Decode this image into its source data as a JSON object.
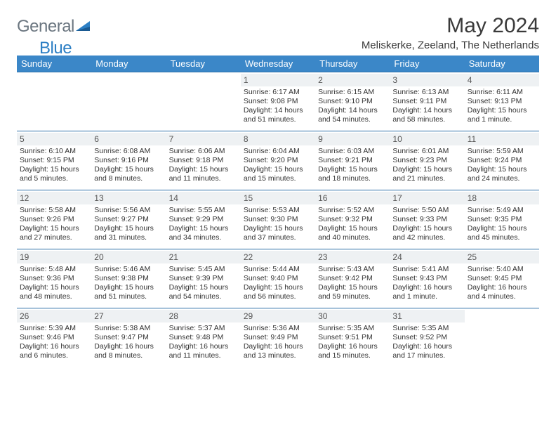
{
  "logo": {
    "text1": "General",
    "text2": "Blue"
  },
  "title": "May 2024",
  "location": "Meliskerke, Zeeland, The Netherlands",
  "colors": {
    "header_bg": "#3b87c8",
    "header_text": "#ffffff",
    "daynum_bg": "#eef1f3",
    "row_border": "#2d6fa8",
    "logo_gray": "#6b7680",
    "logo_blue": "#2d7fc4"
  },
  "day_headers": [
    "Sunday",
    "Monday",
    "Tuesday",
    "Wednesday",
    "Thursday",
    "Friday",
    "Saturday"
  ],
  "weeks": [
    [
      {
        "n": "",
        "sr": "",
        "ss": "",
        "dl": ""
      },
      {
        "n": "",
        "sr": "",
        "ss": "",
        "dl": ""
      },
      {
        "n": "",
        "sr": "",
        "ss": "",
        "dl": ""
      },
      {
        "n": "1",
        "sr": "Sunrise: 6:17 AM",
        "ss": "Sunset: 9:08 PM",
        "dl": "Daylight: 14 hours and 51 minutes."
      },
      {
        "n": "2",
        "sr": "Sunrise: 6:15 AM",
        "ss": "Sunset: 9:10 PM",
        "dl": "Daylight: 14 hours and 54 minutes."
      },
      {
        "n": "3",
        "sr": "Sunrise: 6:13 AM",
        "ss": "Sunset: 9:11 PM",
        "dl": "Daylight: 14 hours and 58 minutes."
      },
      {
        "n": "4",
        "sr": "Sunrise: 6:11 AM",
        "ss": "Sunset: 9:13 PM",
        "dl": "Daylight: 15 hours and 1 minute."
      }
    ],
    [
      {
        "n": "5",
        "sr": "Sunrise: 6:10 AM",
        "ss": "Sunset: 9:15 PM",
        "dl": "Daylight: 15 hours and 5 minutes."
      },
      {
        "n": "6",
        "sr": "Sunrise: 6:08 AM",
        "ss": "Sunset: 9:16 PM",
        "dl": "Daylight: 15 hours and 8 minutes."
      },
      {
        "n": "7",
        "sr": "Sunrise: 6:06 AM",
        "ss": "Sunset: 9:18 PM",
        "dl": "Daylight: 15 hours and 11 minutes."
      },
      {
        "n": "8",
        "sr": "Sunrise: 6:04 AM",
        "ss": "Sunset: 9:20 PM",
        "dl": "Daylight: 15 hours and 15 minutes."
      },
      {
        "n": "9",
        "sr": "Sunrise: 6:03 AM",
        "ss": "Sunset: 9:21 PM",
        "dl": "Daylight: 15 hours and 18 minutes."
      },
      {
        "n": "10",
        "sr": "Sunrise: 6:01 AM",
        "ss": "Sunset: 9:23 PM",
        "dl": "Daylight: 15 hours and 21 minutes."
      },
      {
        "n": "11",
        "sr": "Sunrise: 5:59 AM",
        "ss": "Sunset: 9:24 PM",
        "dl": "Daylight: 15 hours and 24 minutes."
      }
    ],
    [
      {
        "n": "12",
        "sr": "Sunrise: 5:58 AM",
        "ss": "Sunset: 9:26 PM",
        "dl": "Daylight: 15 hours and 27 minutes."
      },
      {
        "n": "13",
        "sr": "Sunrise: 5:56 AM",
        "ss": "Sunset: 9:27 PM",
        "dl": "Daylight: 15 hours and 31 minutes."
      },
      {
        "n": "14",
        "sr": "Sunrise: 5:55 AM",
        "ss": "Sunset: 9:29 PM",
        "dl": "Daylight: 15 hours and 34 minutes."
      },
      {
        "n": "15",
        "sr": "Sunrise: 5:53 AM",
        "ss": "Sunset: 9:30 PM",
        "dl": "Daylight: 15 hours and 37 minutes."
      },
      {
        "n": "16",
        "sr": "Sunrise: 5:52 AM",
        "ss": "Sunset: 9:32 PM",
        "dl": "Daylight: 15 hours and 40 minutes."
      },
      {
        "n": "17",
        "sr": "Sunrise: 5:50 AM",
        "ss": "Sunset: 9:33 PM",
        "dl": "Daylight: 15 hours and 42 minutes."
      },
      {
        "n": "18",
        "sr": "Sunrise: 5:49 AM",
        "ss": "Sunset: 9:35 PM",
        "dl": "Daylight: 15 hours and 45 minutes."
      }
    ],
    [
      {
        "n": "19",
        "sr": "Sunrise: 5:48 AM",
        "ss": "Sunset: 9:36 PM",
        "dl": "Daylight: 15 hours and 48 minutes."
      },
      {
        "n": "20",
        "sr": "Sunrise: 5:46 AM",
        "ss": "Sunset: 9:38 PM",
        "dl": "Daylight: 15 hours and 51 minutes."
      },
      {
        "n": "21",
        "sr": "Sunrise: 5:45 AM",
        "ss": "Sunset: 9:39 PM",
        "dl": "Daylight: 15 hours and 54 minutes."
      },
      {
        "n": "22",
        "sr": "Sunrise: 5:44 AM",
        "ss": "Sunset: 9:40 PM",
        "dl": "Daylight: 15 hours and 56 minutes."
      },
      {
        "n": "23",
        "sr": "Sunrise: 5:43 AM",
        "ss": "Sunset: 9:42 PM",
        "dl": "Daylight: 15 hours and 59 minutes."
      },
      {
        "n": "24",
        "sr": "Sunrise: 5:41 AM",
        "ss": "Sunset: 9:43 PM",
        "dl": "Daylight: 16 hours and 1 minute."
      },
      {
        "n": "25",
        "sr": "Sunrise: 5:40 AM",
        "ss": "Sunset: 9:45 PM",
        "dl": "Daylight: 16 hours and 4 minutes."
      }
    ],
    [
      {
        "n": "26",
        "sr": "Sunrise: 5:39 AM",
        "ss": "Sunset: 9:46 PM",
        "dl": "Daylight: 16 hours and 6 minutes."
      },
      {
        "n": "27",
        "sr": "Sunrise: 5:38 AM",
        "ss": "Sunset: 9:47 PM",
        "dl": "Daylight: 16 hours and 8 minutes."
      },
      {
        "n": "28",
        "sr": "Sunrise: 5:37 AM",
        "ss": "Sunset: 9:48 PM",
        "dl": "Daylight: 16 hours and 11 minutes."
      },
      {
        "n": "29",
        "sr": "Sunrise: 5:36 AM",
        "ss": "Sunset: 9:49 PM",
        "dl": "Daylight: 16 hours and 13 minutes."
      },
      {
        "n": "30",
        "sr": "Sunrise: 5:35 AM",
        "ss": "Sunset: 9:51 PM",
        "dl": "Daylight: 16 hours and 15 minutes."
      },
      {
        "n": "31",
        "sr": "Sunrise: 5:35 AM",
        "ss": "Sunset: 9:52 PM",
        "dl": "Daylight: 16 hours and 17 minutes."
      },
      {
        "n": "",
        "sr": "",
        "ss": "",
        "dl": ""
      }
    ]
  ]
}
